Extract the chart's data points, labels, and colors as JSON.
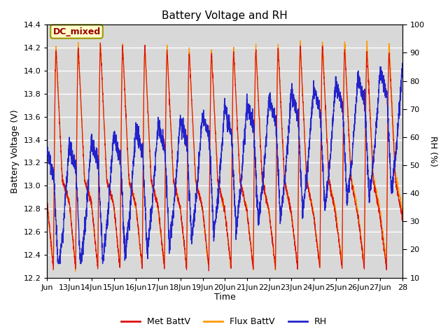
{
  "title": "Battery Voltage and RH",
  "xlabel": "Time",
  "ylabel_left": "Battery Voltage (V)",
  "ylabel_right": "RH (%)",
  "xlim": [
    0,
    16
  ],
  "ylim_left": [
    12.2,
    14.4
  ],
  "ylim_right": [
    10,
    100
  ],
  "yticks_left": [
    12.2,
    12.4,
    12.6,
    12.8,
    13.0,
    13.2,
    13.4,
    13.6,
    13.8,
    14.0,
    14.2,
    14.4
  ],
  "yticks_right": [
    10,
    20,
    30,
    40,
    50,
    60,
    70,
    80,
    90,
    100
  ],
  "xtick_labels": [
    "Jun",
    "13Jun",
    "14Jun",
    "15Jun",
    "16Jun",
    "17Jun",
    "18Jun",
    "19Jun",
    "20Jun",
    "21Jun",
    "22Jun",
    "23Jun",
    "24Jun",
    "25Jun",
    "26Jun",
    "27Jun",
    "28"
  ],
  "color_met": "#dd1111",
  "color_flux": "#ff9900",
  "color_rh": "#2222cc",
  "annotation_text": "DC_mixed",
  "annotation_color": "#990000",
  "annotation_bg": "#ffffcc",
  "annotation_edge": "#999900",
  "background_color": "#d8d8d8",
  "grid_color": "#ffffff",
  "legend_labels": [
    "Met BattV",
    "Flux BattV",
    "RH"
  ],
  "legend_colors": [
    "#dd1111",
    "#ff9900",
    "#2222cc"
  ]
}
